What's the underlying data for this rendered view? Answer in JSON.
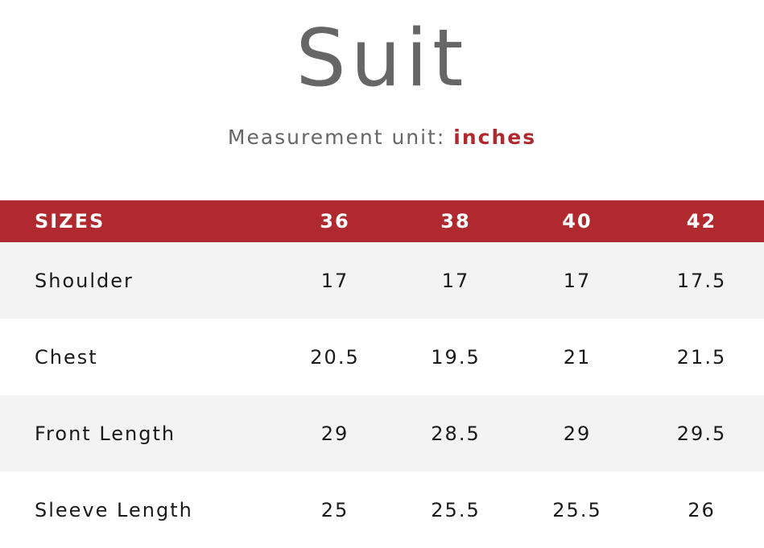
{
  "title": "Suit",
  "unit": {
    "label": "Measurement unit:",
    "value": "inches"
  },
  "table": {
    "header": [
      "SIZES",
      "36",
      "38",
      "40",
      "42"
    ],
    "rows": [
      {
        "label": "Shoulder",
        "values": [
          "17",
          "17",
          "17",
          "17.5"
        ]
      },
      {
        "label": "Chest",
        "values": [
          "20.5",
          "19.5",
          "21",
          "21.5"
        ]
      },
      {
        "label": "Front Length",
        "values": [
          "29",
          "28.5",
          "29",
          "29.5"
        ]
      },
      {
        "label": "Sleeve Length",
        "values": [
          "25",
          "25.5",
          "25.5",
          "26"
        ]
      }
    ]
  },
  "colors": {
    "accent": "#b0292e",
    "title_text": "#666666",
    "row_alt": "#f3f3f3"
  }
}
